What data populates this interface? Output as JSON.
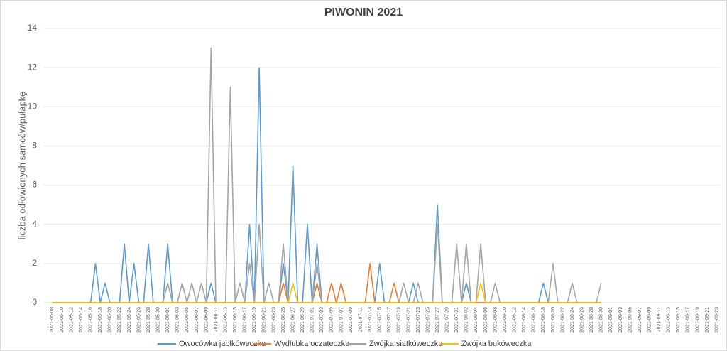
{
  "chart_data": {
    "type": "line",
    "title": "PIWONIN 2021",
    "y_label": "liczba odłowionych samców/pułapkę",
    "categories": [
      "2021-05-08",
      null,
      "2021-05-10",
      null,
      "2021-05-12",
      null,
      "2021-05-14",
      null,
      "2021-05-16",
      null,
      "2021-05-18",
      null,
      "2021-05-20",
      null,
      "2021-05-22",
      null,
      "2021-05-24",
      null,
      "2021-05-26",
      null,
      "2021-05-28",
      null,
      "2021-05-30",
      null,
      "2021-06-01",
      null,
      "2021-06-03",
      null,
      "2021-06-05",
      null,
      "2021-06-07",
      null,
      "2021-06-09",
      null,
      "2021-06-11",
      null,
      "2021-06-13",
      null,
      "2021-06-15",
      null,
      "2021-06-17",
      null,
      "2021-06-19",
      null,
      "2021-06-21",
      null,
      "2021-06-23",
      null,
      "2021-06-25",
      null,
      "2021-06-27",
      null,
      "2021-06-29",
      null,
      "2021-07-01",
      null,
      "2021-07-03",
      null,
      "2021-07-05",
      null,
      "2021-07-07",
      null,
      "2021-07-09",
      null,
      "2021-07-11",
      null,
      "2021-07-13",
      null,
      "2021-07-15",
      null,
      "2021-07-17",
      null,
      "2021-07-19",
      null,
      "2021-07-21",
      null,
      "2021-07-23",
      null,
      "2021-07-25",
      null,
      "2021-07-27",
      null,
      "2021-07-29",
      null,
      "2021-07-31",
      null,
      "2021-08-02",
      null,
      "2021-08-04",
      null,
      "2021-08-06",
      null,
      "2021-08-08",
      null,
      "2021-08-10",
      null,
      "2021-08-12",
      null,
      "2021-08-14",
      null,
      "2021-08-16",
      null,
      "2021-08-18",
      null,
      "2021-08-20",
      null,
      "2021-08-22",
      null,
      "2021-08-24",
      null,
      "2021-08-26",
      null,
      "2021-08-28",
      null,
      "2021-08-30",
      null,
      "2021-09-01",
      null,
      "2021-09-03",
      null,
      "2021-09-05",
      null,
      "2021-09-07",
      null,
      "2021-09-09",
      null,
      "2021-09-11",
      null,
      "2021-09-13",
      null,
      "2021-09-15",
      null,
      "2021-09-17",
      null,
      "2021-09-19",
      null,
      "2021-09-21",
      null,
      "2021-09-23"
    ],
    "series": [
      {
        "name": "Owocówka jabłkóweczka",
        "color": "#5b9bd5",
        "values": [
          0,
          0,
          0,
          0,
          0,
          0,
          0,
          0,
          0,
          2,
          0,
          1,
          0,
          0,
          0,
          3,
          0,
          2,
          0,
          0,
          3,
          0,
          0,
          0,
          3,
          0,
          0,
          0,
          0,
          0,
          0,
          0,
          0,
          1,
          0,
          0,
          0,
          0,
          0,
          0,
          0,
          4,
          0,
          12,
          0,
          0,
          0,
          0,
          2,
          0,
          7,
          0,
          0,
          4,
          0,
          3,
          0,
          0,
          0,
          0,
          0,
          0,
          0,
          0,
          0,
          0,
          0,
          0,
          2,
          0,
          0,
          0,
          0,
          0,
          0,
          1,
          0,
          0,
          0,
          0,
          5,
          0,
          0,
          0,
          0,
          0,
          1,
          0,
          0,
          0,
          0,
          0,
          0,
          0,
          0,
          0,
          0,
          0,
          0,
          0,
          0,
          0,
          1,
          0,
          0,
          0,
          0,
          0,
          0,
          0,
          0,
          0,
          0,
          0,
          0,
          null,
          null,
          null,
          null,
          null,
          null,
          null,
          null,
          null,
          null,
          null,
          null,
          null,
          null,
          null,
          null,
          null,
          null,
          null,
          null,
          null,
          null,
          null,
          null
        ]
      },
      {
        "name": "Wydłubka oczateczka",
        "color": "#ed7d31",
        "values": [
          0,
          0,
          0,
          0,
          0,
          0,
          0,
          0,
          0,
          0,
          0,
          0,
          0,
          0,
          0,
          0,
          0,
          0,
          0,
          0,
          0,
          0,
          0,
          0,
          0,
          0,
          0,
          0,
          0,
          0,
          0,
          0,
          0,
          0,
          0,
          0,
          0,
          0,
          0,
          0,
          0,
          0,
          0,
          0,
          0,
          0,
          0,
          0,
          1,
          0,
          0,
          0,
          0,
          0,
          0,
          1,
          0,
          0,
          1,
          0,
          1,
          0,
          0,
          0,
          0,
          0,
          2,
          0,
          0,
          0,
          0,
          1,
          0,
          0,
          0,
          0,
          0,
          0,
          0,
          0,
          0,
          0,
          0,
          0,
          0,
          0,
          0,
          0,
          0,
          0,
          0,
          0,
          0,
          0,
          0,
          0,
          0,
          0,
          0,
          0,
          0,
          0,
          0,
          0,
          0,
          0,
          0,
          0,
          0,
          0,
          0,
          0,
          0,
          0,
          0,
          null,
          null,
          null,
          null,
          null,
          null,
          null,
          null,
          null,
          null,
          null,
          null,
          null,
          null,
          null,
          null,
          null,
          null,
          null,
          null,
          null,
          null,
          null,
          null
        ]
      },
      {
        "name": "Zwójka siatkóweczka",
        "color": "#a5a5a5",
        "values": [
          0,
          0,
          0,
          0,
          0,
          0,
          0,
          0,
          0,
          0,
          0,
          0,
          0,
          0,
          0,
          0,
          0,
          0,
          0,
          0,
          0,
          0,
          0,
          0,
          1,
          0,
          0,
          1,
          0,
          1,
          0,
          1,
          0,
          13,
          0,
          0,
          0,
          11,
          0,
          1,
          0,
          2,
          0,
          4,
          0,
          1,
          0,
          0,
          3,
          0,
          0,
          0,
          0,
          0,
          0,
          2,
          0,
          0,
          0,
          0,
          0,
          0,
          0,
          0,
          0,
          0,
          0,
          0,
          0,
          0,
          0,
          0,
          0,
          1,
          0,
          0,
          1,
          0,
          0,
          0,
          4,
          0,
          0,
          0,
          3,
          0,
          3,
          0,
          0,
          3,
          0,
          0,
          1,
          0,
          0,
          0,
          0,
          0,
          0,
          0,
          0,
          0,
          0,
          0,
          2,
          0,
          0,
          0,
          1,
          0,
          0,
          0,
          0,
          0,
          1,
          null,
          null,
          null,
          null,
          null,
          null,
          null,
          null,
          null,
          null,
          null,
          null,
          null,
          null,
          null,
          null,
          null,
          null,
          null,
          null,
          null,
          null,
          null,
          null
        ]
      },
      {
        "name": "Zwójka bukóweczka",
        "color": "#ffc000",
        "values": [
          0,
          0,
          0,
          0,
          0,
          0,
          0,
          0,
          0,
          0,
          0,
          0,
          0,
          0,
          0,
          0,
          0,
          0,
          0,
          0,
          0,
          0,
          0,
          0,
          0,
          0,
          0,
          0,
          0,
          0,
          0,
          0,
          0,
          0,
          0,
          0,
          0,
          0,
          0,
          0,
          0,
          0,
          0,
          0,
          0,
          0,
          0,
          0,
          0,
          0,
          1,
          0,
          0,
          0,
          0,
          0,
          0,
          0,
          0,
          0,
          0,
          0,
          0,
          0,
          0,
          0,
          0,
          0,
          0,
          0,
          0,
          0,
          0,
          0,
          0,
          0,
          0,
          0,
          0,
          0,
          0,
          0,
          0,
          0,
          0,
          0,
          0,
          0,
          0,
          1,
          0,
          0,
          0,
          0,
          0,
          0,
          0,
          0,
          0,
          0,
          0,
          0,
          0,
          0,
          0,
          0,
          0,
          0,
          0,
          0,
          0,
          0,
          0,
          0,
          0,
          null,
          null,
          null,
          null,
          null,
          null,
          null,
          null,
          null,
          null,
          null,
          null,
          null,
          null,
          null,
          null,
          null,
          null,
          null,
          null,
          null,
          null,
          null,
          null
        ]
      }
    ],
    "ylim": [
      0,
      14
    ],
    "yticks": [
      0,
      2,
      4,
      6,
      8,
      10,
      12,
      14
    ],
    "grid": true,
    "legend": "bottom"
  }
}
